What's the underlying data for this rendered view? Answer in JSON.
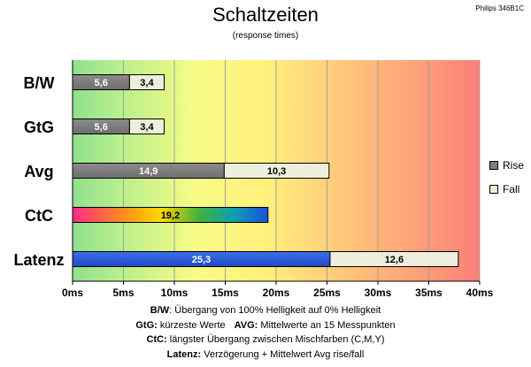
{
  "title": "Schaltzeiten",
  "subtitle": "(response times)",
  "brand": "Philips 346B1C",
  "legend": {
    "rise_label": "Rise",
    "fall_label": "Fall",
    "rise_color": "#808080",
    "fall_color": "#eeeedc"
  },
  "notes": {
    "bw_key": "B/W",
    "bw_text": ":  Übergang von 100% Helligkeit auf 0% Helligkeit",
    "gtg_key": "GtG:",
    "gtg_text": " kürzeste  Werte",
    "avg_key": "AVG:",
    "avg_text": " Mittelwerte  an 15 Messpunkten",
    "ctc_key": "CtC:",
    "ctc_text": " längster Übergang  zwischen Mischfarben  (C,M,Y)",
    "latenz_key": "Latenz:",
    "latenz_text": " Verzögerung  + Mittelwert Avg rise/fall"
  },
  "chart_data": {
    "type": "bar",
    "orientation": "horizontal",
    "stacked": true,
    "title": "Schaltzeiten",
    "subtitle": "(response times)",
    "categories": [
      "B/W",
      "GtG",
      "Avg",
      "CtC",
      "Latenz"
    ],
    "series": [
      {
        "name": "Rise",
        "values": [
          5.6,
          5.6,
          14.9,
          19.2,
          25.3
        ]
      },
      {
        "name": "Fall",
        "values": [
          3.4,
          3.4,
          10.3,
          null,
          12.6
        ]
      }
    ],
    "bar_styles": [
      "gray",
      "gray",
      "gray",
      "rainbow",
      "blue"
    ],
    "xlim": [
      0,
      40
    ],
    "xticks": [
      0,
      5,
      10,
      15,
      20,
      25,
      30,
      35,
      40
    ],
    "xtick_suffix": "ms",
    "grid": true,
    "background": "gradient green-yellow-red",
    "legend_position": "right"
  }
}
